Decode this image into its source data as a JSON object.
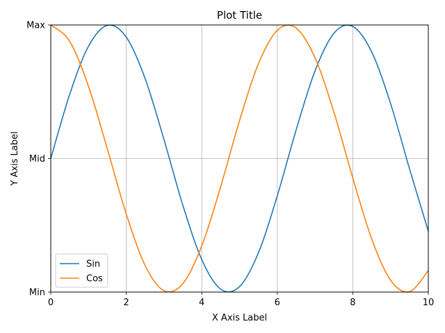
{
  "chart_data": {
    "type": "line",
    "title": "Plot Title",
    "xlabel": "X Axis Label",
    "ylabel": "Y Axis Label",
    "xlim": [
      0,
      10
    ],
    "ylim": [
      -1,
      1
    ],
    "xticks": [
      0,
      2,
      4,
      6,
      8,
      10
    ],
    "xtick_labels": [
      "0",
      "2",
      "4",
      "6",
      "8",
      "10"
    ],
    "yticks": [
      -1,
      0,
      1
    ],
    "ytick_labels": [
      "Min",
      "Mid",
      "Max"
    ],
    "grid": true,
    "legend": {
      "placement": "lower-left"
    },
    "x": [
      0,
      0.5,
      1,
      1.5,
      2,
      2.5,
      3,
      3.5,
      4,
      4.5,
      5,
      5.5,
      6,
      6.5,
      7,
      7.5,
      8,
      8.5,
      9,
      9.5,
      10
    ],
    "series": [
      {
        "name": "Sin",
        "color": "#1f77b4",
        "values": [
          0,
          0.479,
          0.841,
          0.997,
          0.909,
          0.598,
          0.141,
          -0.351,
          -0.757,
          -0.978,
          -0.959,
          -0.706,
          -0.279,
          0.215,
          0.657,
          0.938,
          0.989,
          0.798,
          0.412,
          -0.075,
          -0.544
        ]
      },
      {
        "name": "Cos",
        "color": "#ff7f0e",
        "values": [
          1,
          0.878,
          0.54,
          0.071,
          -0.416,
          -0.801,
          -0.99,
          -0.936,
          -0.654,
          -0.211,
          0.284,
          0.709,
          0.96,
          0.977,
          0.754,
          0.347,
          -0.146,
          -0.602,
          -0.911,
          -0.997,
          -0.839
        ]
      }
    ]
  }
}
